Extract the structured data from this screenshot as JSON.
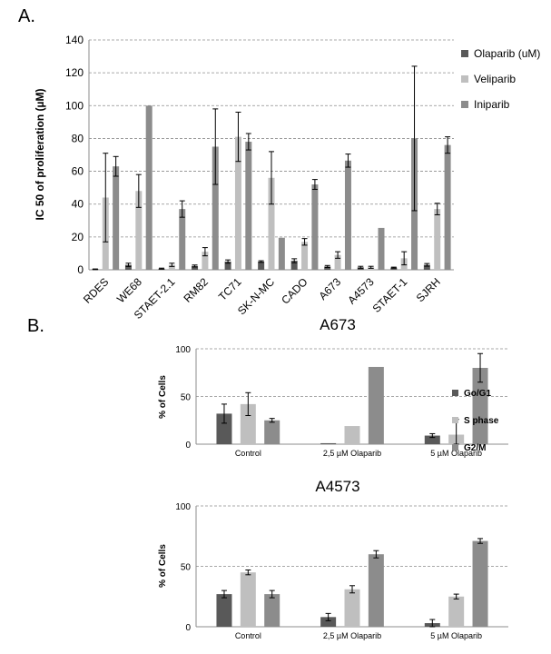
{
  "labels": {
    "panel_a": "A.",
    "panel_b": "B."
  },
  "colors": {
    "series_1": "#595959",
    "series_2": "#bfbfbf",
    "series_3": "#8c8c8c",
    "grid": "#8c8c8c",
    "axis": "#8c8c8c",
    "error": "#000000"
  },
  "chart_data": [
    {
      "type": "bar",
      "title": "",
      "xlabel": "",
      "ylabel": "IC 50 of proliferation (µM)",
      "ylim": [
        0,
        140
      ],
      "yticks": [
        0,
        20,
        40,
        60,
        80,
        100,
        120,
        140
      ],
      "grid": true,
      "legend_position": "right",
      "categories": [
        "RDES",
        "WE68",
        "STAET-2.1",
        "RM82",
        "TC71",
        "SK-N-MC",
        "CADO",
        "A673",
        "A4573",
        "STAET-1",
        "SJRH"
      ],
      "series": [
        {
          "name": "Olaparib (uM)",
          "values": [
            0.3,
            3,
            0.7,
            2.3,
            5,
            5,
            5.5,
            2,
            1.5,
            1.3,
            3
          ],
          "errors": [
            0.2,
            1,
            0.3,
            0.6,
            1,
            0.5,
            1.2,
            0.6,
            0.6,
            0.3,
            0.8
          ]
        },
        {
          "name": "Veliparib",
          "values": [
            44,
            48,
            3,
            11,
            81,
            56,
            17,
            9,
            1.5,
            7,
            37
          ],
          "errors": [
            27,
            10,
            1,
            2.5,
            15,
            16,
            2,
            2,
            0.6,
            4,
            3.5
          ]
        },
        {
          "name": "Iniparib",
          "values": [
            63,
            100,
            37,
            75,
            78,
            19.5,
            52,
            66.5,
            25.5,
            80,
            76
          ],
          "errors": [
            6,
            0,
            5,
            23,
            5,
            0,
            3,
            4,
            0,
            44,
            5
          ]
        }
      ]
    },
    {
      "type": "bar",
      "title": "A673",
      "xlabel": "",
      "ylabel": "% of Cells",
      "ylim": [
        0,
        100
      ],
      "yticks": [
        0,
        50,
        100
      ],
      "grid": true,
      "legend_position": "right",
      "categories": [
        "Control",
        "2,5 µM Olaparib",
        "5 µM Olaparib"
      ],
      "series": [
        {
          "name": "Go/G1",
          "values": [
            32,
            1,
            9
          ],
          "errors": [
            10,
            0,
            2
          ]
        },
        {
          "name": "S phase",
          "values": [
            42,
            19,
            10
          ],
          "errors": [
            12,
            0,
            16
          ]
        },
        {
          "name": "G2/M",
          "values": [
            25,
            81,
            80
          ],
          "errors": [
            2,
            0,
            15
          ]
        }
      ]
    },
    {
      "type": "bar",
      "title": "A4573",
      "xlabel": "",
      "ylabel": "% of Cells",
      "ylim": [
        0,
        100
      ],
      "yticks": [
        0,
        50,
        100
      ],
      "grid": true,
      "legend_position": "none",
      "categories": [
        "Control",
        "2,5 µM Olaparib",
        "5 µM Olaparib"
      ],
      "series": [
        {
          "name": "Go/G1",
          "values": [
            27,
            8,
            3
          ],
          "errors": [
            3,
            3,
            3
          ]
        },
        {
          "name": "S phase",
          "values": [
            45,
            31,
            25
          ],
          "errors": [
            2,
            3,
            2
          ]
        },
        {
          "name": "G2/M",
          "values": [
            27,
            60,
            71
          ],
          "errors": [
            3,
            3,
            2
          ]
        }
      ]
    }
  ]
}
